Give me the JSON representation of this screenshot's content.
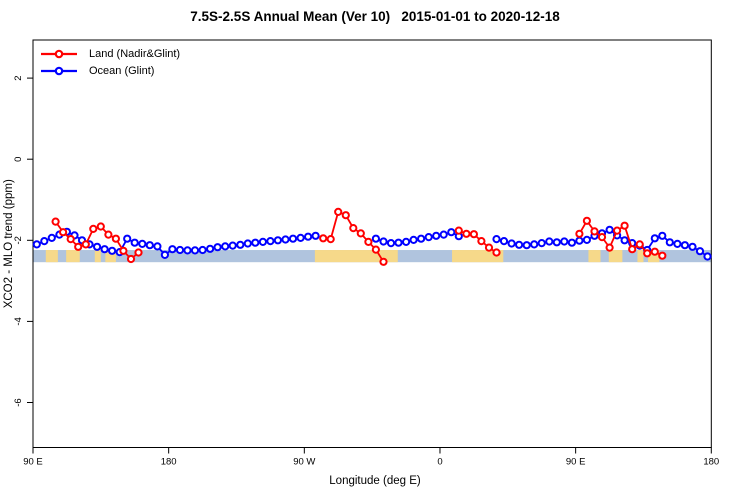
{
  "chart_data": {
    "type": "line",
    "title": "7.5S-2.5S Annual Mean (Ver 10)   2015-01-01 to 2020-12-18",
    "x_label": "Longitude (deg E)",
    "y_label": "XCO2 - MLO trend (ppm)",
    "x_range": [
      90,
      540
    ],
    "y_range": [
      -7.1,
      2.93
    ],
    "x_ticks": [
      {
        "pos": 90,
        "label": "90 E"
      },
      {
        "pos": 180,
        "label": "180"
      },
      {
        "pos": 270,
        "label": "90 W"
      },
      {
        "pos": 360,
        "label": "0"
      },
      {
        "pos": 450,
        "label": "90 E"
      },
      {
        "pos": 540,
        "label": "180"
      }
    ],
    "y_ticks": [
      {
        "pos": 2,
        "label": "2"
      },
      {
        "pos": 0,
        "label": "0"
      },
      {
        "pos": -2,
        "label": "-2"
      },
      {
        "pos": -4,
        "label": "-4"
      },
      {
        "pos": -6,
        "label": "-6"
      }
    ],
    "grid": "off",
    "legend_position": "top-left",
    "legend": [
      {
        "label": "Land (Nadir&Glint)",
        "color": "#ff0000"
      },
      {
        "label": "Ocean (Glint)",
        "color": "#0000ff"
      }
    ],
    "map_strip": {
      "description": "land/ocean strip along 7.5S-2.5S",
      "ocean_color": "#b0c4de",
      "land_color": "#f6d98a",
      "v_top": -2.24,
      "v_bottom": -2.54,
      "land_segments": [
        [
          98.5,
          106.5
        ],
        [
          112,
          121
        ],
        [
          131,
          135
        ],
        [
          138,
          145
        ],
        [
          277,
          332
        ],
        [
          368,
          402
        ],
        [
          458.5,
          466.5
        ],
        [
          472,
          481
        ],
        [
          491,
          495
        ],
        [
          498,
          505.5
        ]
      ]
    },
    "series": [
      {
        "name": "Ocean (Glint)",
        "color": "#0000ff",
        "points": [
          [
            92.5,
            -2.1
          ],
          [
            97.5,
            -2.02
          ],
          [
            102.5,
            -1.94
          ],
          [
            107.5,
            -1.86
          ],
          [
            112.5,
            -1.79
          ],
          [
            117.5,
            -1.88
          ],
          [
            122.5,
            -2.0
          ],
          [
            127.5,
            -2.1
          ],
          [
            132.5,
            -2.16
          ],
          [
            137.5,
            -2.22
          ],
          [
            142.5,
            -2.26
          ],
          [
            147.5,
            -2.29
          ],
          [
            152.5,
            -1.96
          ],
          [
            157.5,
            -2.06
          ],
          [
            162.5,
            -2.09
          ],
          [
            167.5,
            -2.12
          ],
          [
            172.5,
            -2.15
          ],
          [
            177.5,
            -2.36
          ],
          [
            182.5,
            -2.22
          ],
          [
            187.5,
            -2.24
          ],
          [
            192.5,
            -2.25
          ],
          [
            197.5,
            -2.25
          ],
          [
            202.5,
            -2.24
          ],
          [
            207.5,
            -2.21
          ],
          [
            212.5,
            -2.17
          ],
          [
            217.5,
            -2.15
          ],
          [
            222.5,
            -2.13
          ],
          [
            227.5,
            -2.11
          ],
          [
            232.5,
            -2.08
          ],
          [
            237.5,
            -2.06
          ],
          [
            242.5,
            -2.04
          ],
          [
            247.5,
            -2.02
          ],
          [
            252.5,
            -2.0
          ],
          [
            257.5,
            -1.98
          ],
          [
            262.5,
            -1.96
          ],
          [
            267.5,
            -1.94
          ],
          [
            272.5,
            -1.91
          ],
          [
            277.5,
            -1.89
          ],
          [
            317.5,
            -1.96
          ],
          [
            322.5,
            -2.03
          ],
          [
            327.5,
            -2.07
          ],
          [
            332.5,
            -2.06
          ],
          [
            337.5,
            -2.04
          ],
          [
            342.5,
            -1.99
          ],
          [
            347.5,
            -1.96
          ],
          [
            352.5,
            -1.92
          ],
          [
            357.5,
            -1.89
          ],
          [
            362.5,
            -1.86
          ],
          [
            367.5,
            -1.8
          ],
          [
            372.5,
            -1.9
          ],
          [
            397.5,
            -1.97
          ],
          [
            402.5,
            -2.02
          ],
          [
            407.5,
            -2.08
          ],
          [
            412.5,
            -2.11
          ],
          [
            417.5,
            -2.12
          ],
          [
            422.5,
            -2.1
          ],
          [
            427.5,
            -2.07
          ],
          [
            432.5,
            -2.03
          ],
          [
            437.5,
            -2.05
          ],
          [
            442.5,
            -2.03
          ],
          [
            447.5,
            -2.06
          ],
          [
            452.5,
            -2.01
          ],
          [
            457.5,
            -1.99
          ],
          [
            462.5,
            -1.89
          ],
          [
            467.5,
            -1.83
          ],
          [
            472.5,
            -1.74
          ],
          [
            477.5,
            -1.88
          ],
          [
            482.5,
            -2.0
          ],
          [
            487.5,
            -2.07
          ],
          [
            492.5,
            -2.13
          ],
          [
            497.5,
            -2.24
          ],
          [
            502.5,
            -1.95
          ],
          [
            507.5,
            -1.89
          ],
          [
            512.5,
            -2.05
          ],
          [
            517.5,
            -2.09
          ],
          [
            522.5,
            -2.12
          ],
          [
            527.5,
            -2.16
          ],
          [
            532.5,
            -2.27
          ],
          [
            537.5,
            -2.4
          ]
        ]
      },
      {
        "name": "Land (Nadir&Glint)",
        "color": "#ff0000",
        "points": [
          [
            105,
            -1.54
          ],
          [
            110,
            -1.8
          ],
          [
            115,
            -1.97
          ],
          [
            120,
            -2.16
          ],
          [
            125,
            -2.1
          ],
          [
            130,
            -1.72
          ],
          [
            135,
            -1.66
          ],
          [
            140,
            -1.86
          ],
          [
            145,
            -1.96
          ],
          [
            150,
            -2.26
          ],
          [
            155,
            -2.46
          ],
          [
            160,
            -2.3
          ],
          [
            282.5,
            -1.95
          ],
          [
            287.5,
            -1.97
          ],
          [
            292.5,
            -1.3
          ],
          [
            297.5,
            -1.38
          ],
          [
            302.5,
            -1.7
          ],
          [
            307.5,
            -1.83
          ],
          [
            312.5,
            -2.04
          ],
          [
            317.5,
            -2.23
          ],
          [
            322.5,
            -2.53
          ],
          [
            372.5,
            -1.76
          ],
          [
            377.5,
            -1.84
          ],
          [
            382.5,
            -1.85
          ],
          [
            387.5,
            -2.02
          ],
          [
            392.5,
            -2.18
          ],
          [
            397.5,
            -2.3
          ],
          [
            452.5,
            -1.84
          ],
          [
            457.5,
            -1.52
          ],
          [
            462.5,
            -1.78
          ],
          [
            467.5,
            -1.92
          ],
          [
            472.5,
            -2.18
          ],
          [
            477.5,
            -1.76
          ],
          [
            482.5,
            -1.64
          ],
          [
            487.5,
            -2.22
          ],
          [
            492.5,
            -2.1
          ],
          [
            497.5,
            -2.32
          ],
          [
            502.5,
            -2.28
          ],
          [
            507.5,
            -2.38
          ]
        ]
      }
    ]
  }
}
